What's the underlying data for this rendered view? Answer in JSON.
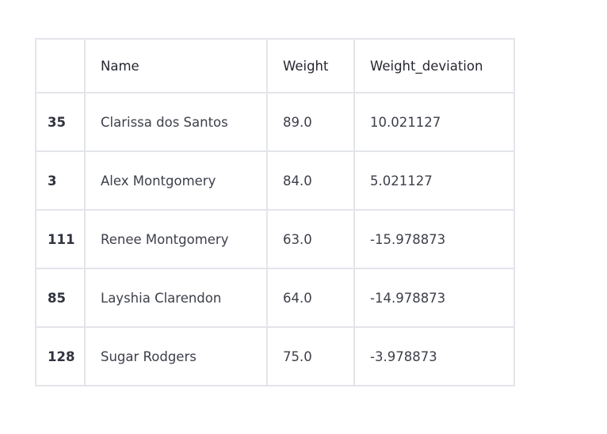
{
  "table": {
    "columns": [
      "",
      "Name",
      "Weight",
      "Weight_deviation"
    ],
    "rows": [
      {
        "index": "35",
        "name": "Clarissa dos Santos",
        "weight": "89.0",
        "deviation": "10.021127"
      },
      {
        "index": "3",
        "name": "Alex Montgomery",
        "weight": "84.0",
        "deviation": "5.021127"
      },
      {
        "index": "111",
        "name": "Renee Montgomery",
        "weight": "63.0",
        "deviation": "-15.978873"
      },
      {
        "index": "85",
        "name": "Layshia Clarendon",
        "weight": "64.0",
        "deviation": "-14.978873"
      },
      {
        "index": "128",
        "name": "Sugar Rodgers",
        "weight": "75.0",
        "deviation": "-3.978873"
      }
    ]
  },
  "colors": {
    "border": "#e3e5ea",
    "text": "#31333f"
  }
}
